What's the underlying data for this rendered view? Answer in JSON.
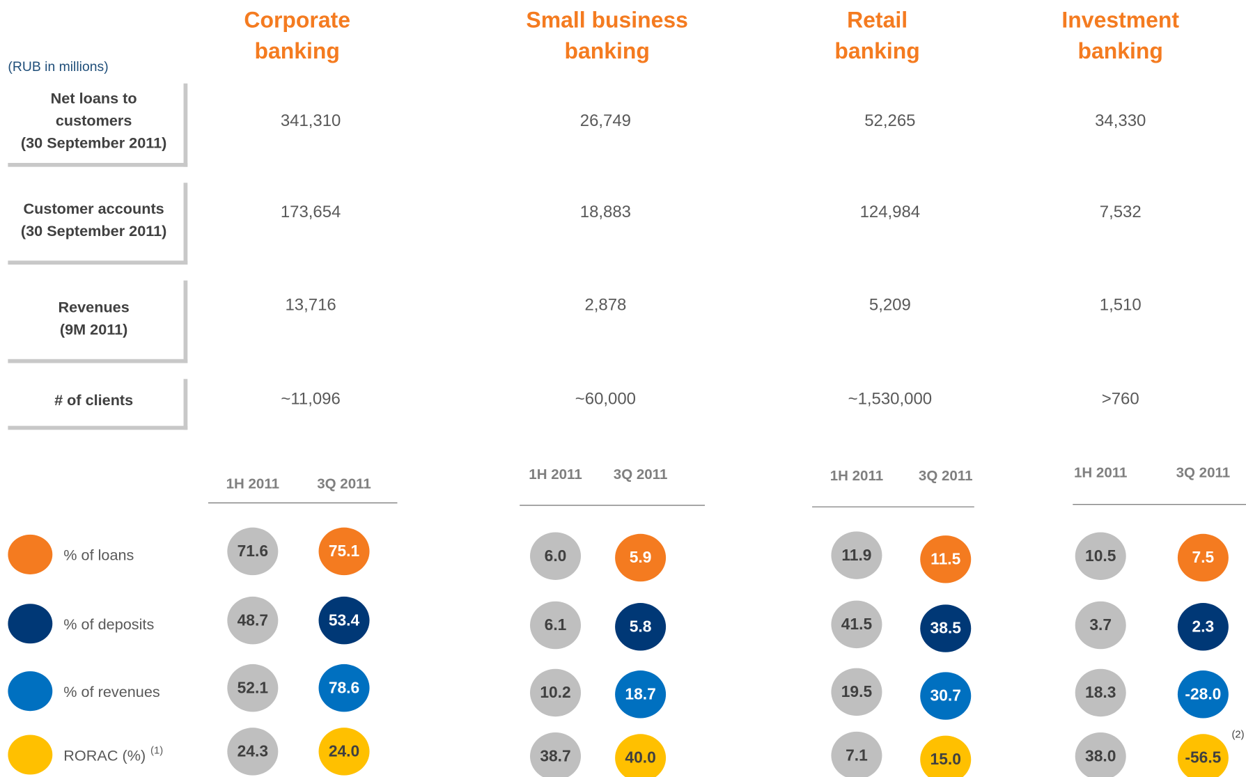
{
  "unit_note": "(RUB in millions)",
  "row_labels": [
    [
      "Net loans to",
      "customers",
      "(30 September 2011)"
    ],
    [
      "Customer accounts",
      "(30 September 2011)"
    ],
    [
      "Revenues",
      "(9M 2011)"
    ],
    [
      "# of clients"
    ]
  ],
  "title_color": "#f47b20",
  "gray_color": "#bfbfbf",
  "share_labels": [
    {
      "label": "% of loans",
      "color": "#f47b20"
    },
    {
      "label": "% of deposits",
      "color": "#003876"
    },
    {
      "label": "% of revenues",
      "color": "#0070c0"
    },
    {
      "label": "RORAC (%)",
      "note": "(1)",
      "color": "#ffc000"
    }
  ],
  "segments": [
    {
      "title": [
        "Corporate",
        "banking"
      ],
      "metrics": [
        "341,310",
        "173,654",
        "13,716",
        "~11,096"
      ],
      "periods": [
        "1H 2011",
        "3Q 2011"
      ],
      "shares": [
        [
          "71.6",
          "75.1"
        ],
        [
          "48.7",
          "53.4"
        ],
        [
          "52.1",
          "78.6"
        ],
        [
          "24.3",
          "24.0"
        ]
      ]
    },
    {
      "title": [
        "Small business",
        "banking"
      ],
      "metrics": [
        "26,749",
        "18,883",
        "2,878",
        "~60,000"
      ],
      "periods": [
        "1H 2011",
        "3Q 2011"
      ],
      "shares": [
        [
          "6.0",
          "5.9"
        ],
        [
          "6.1",
          "5.8"
        ],
        [
          "10.2",
          "18.7"
        ],
        [
          "38.7",
          "40.0"
        ]
      ]
    },
    {
      "title": [
        "Retail",
        "banking"
      ],
      "metrics": [
        "52,265",
        "124,984",
        "5,209",
        "~1,530,000"
      ],
      "periods": [
        "1H 2011",
        "3Q 2011"
      ],
      "shares": [
        [
          "11.9",
          "11.5"
        ],
        [
          "41.5",
          "38.5"
        ],
        [
          "19.5",
          "30.7"
        ],
        [
          "7.1",
          "15.0"
        ]
      ]
    },
    {
      "title": [
        "Investment",
        "banking"
      ],
      "metrics": [
        "34,330",
        "7,532",
        "1,510",
        ">760"
      ],
      "periods": [
        "1H 2011",
        "3Q 2011"
      ],
      "shares": [
        [
          "10.5",
          "7.5"
        ],
        [
          "3.7",
          "2.3"
        ],
        [
          "18.3",
          "-28.0"
        ],
        [
          "38.0",
          "-56.5"
        ]
      ],
      "footnote_mark": "(2)"
    }
  ]
}
